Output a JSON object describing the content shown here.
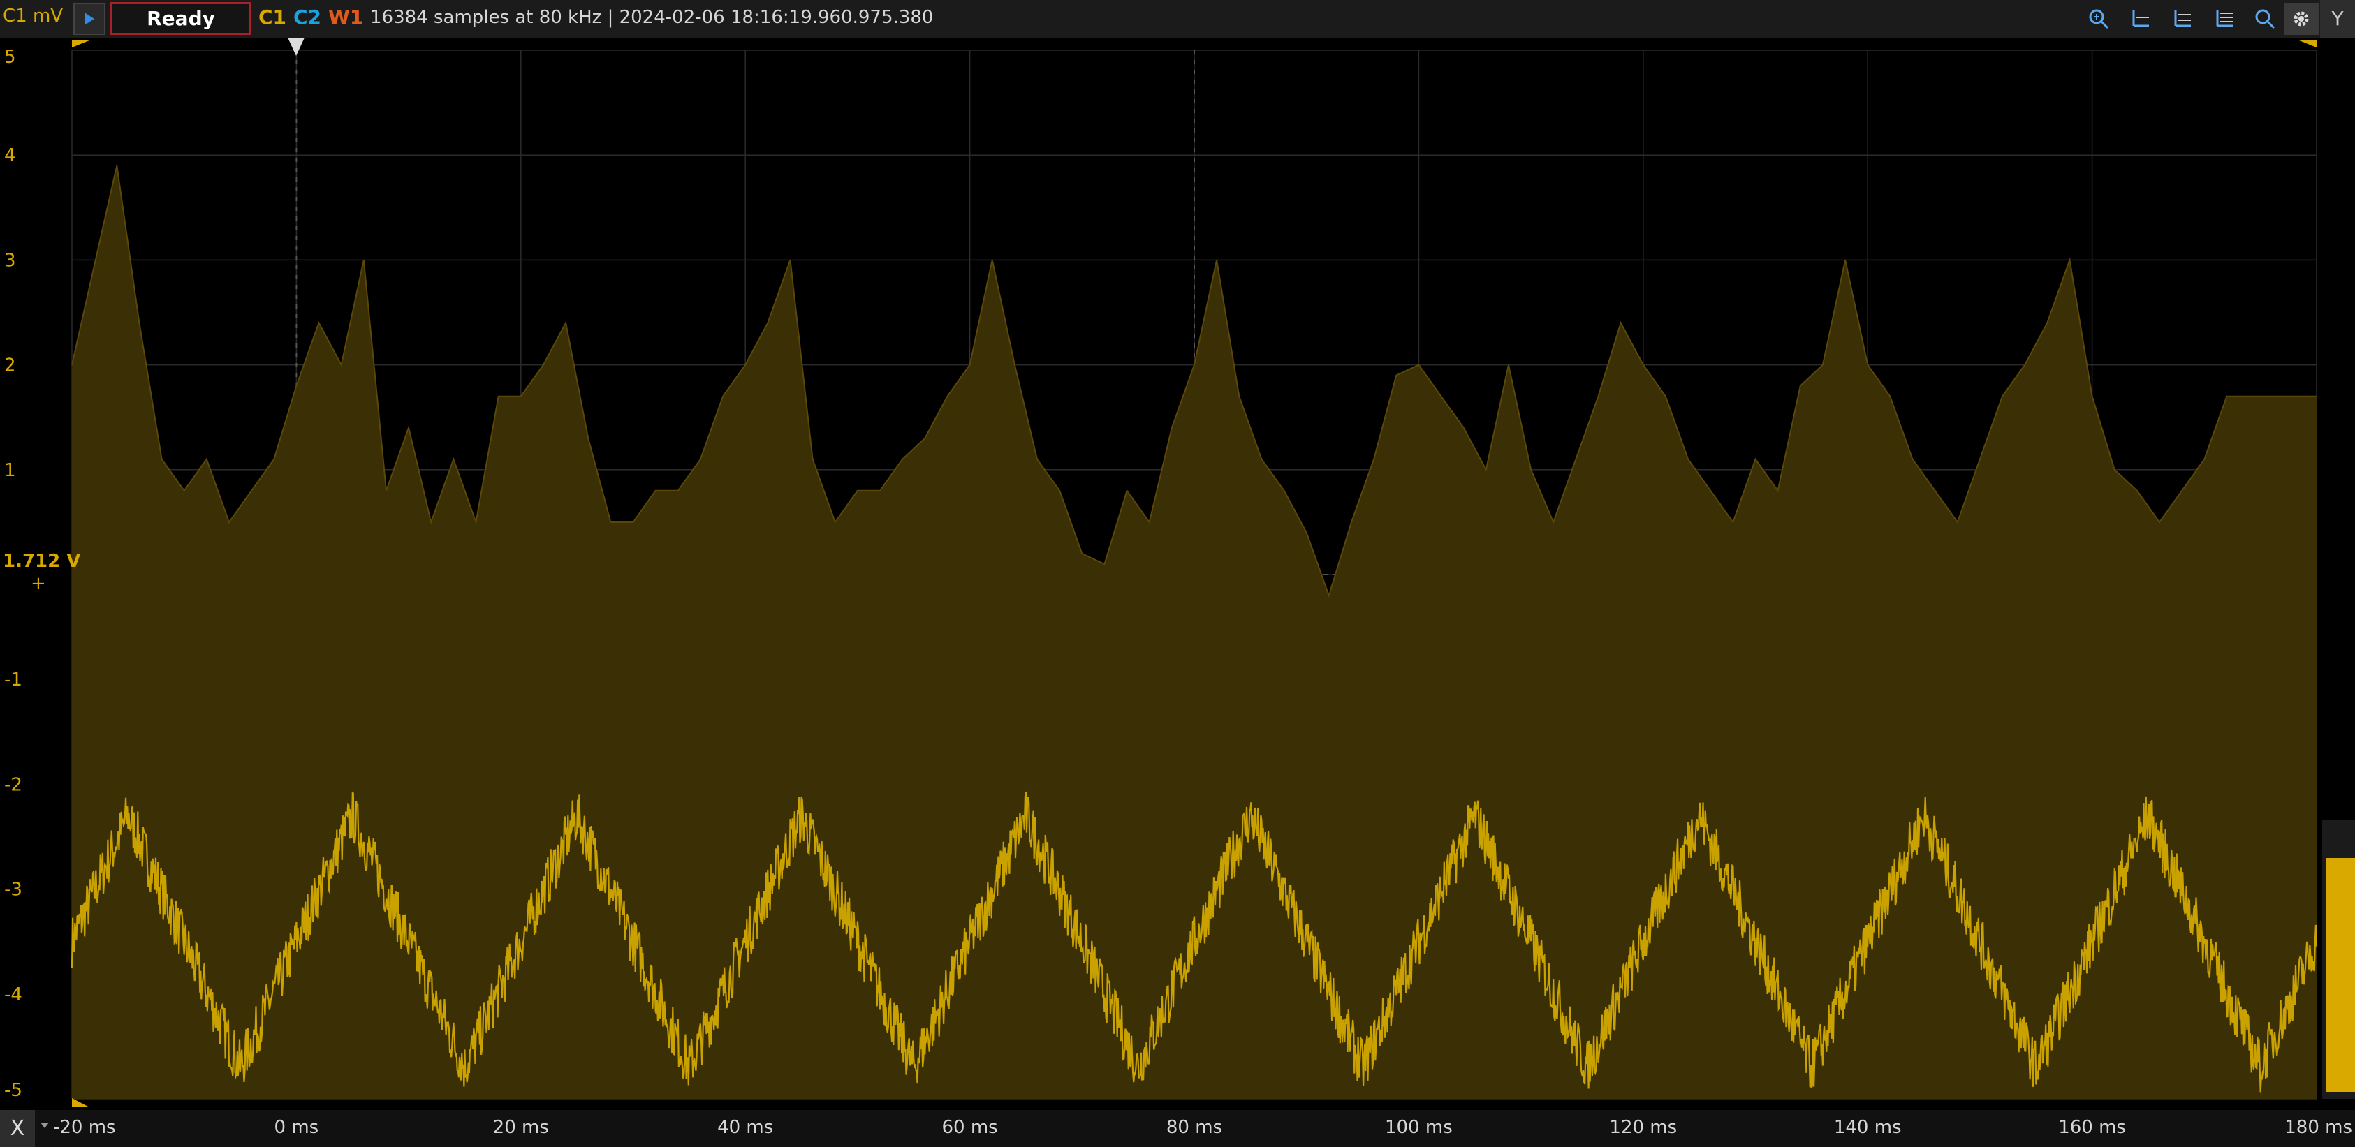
{
  "toolbar": {
    "unit_label": "C1 mV",
    "status_button": "Ready",
    "channels": [
      "C1",
      "C2",
      "W1"
    ],
    "acquisition_info": "16384 samples at 80 kHz | 2024-02-06 18:16:19.960.975.380",
    "icons": [
      "zoom-in-icon",
      "cursor-horizontal-icon",
      "cursor-vertical-icon",
      "cursor-list-icon",
      "zoom-icon",
      "settings-icon"
    ],
    "y_button": "Y",
    "run_icon": "play-icon"
  },
  "bottom": {
    "x_button": "X"
  },
  "colors": {
    "channel1": "#d9a900",
    "channel2": "#19a4e0",
    "math1": "#e05a1a",
    "ready_border": "#a9202a",
    "fill": "#3b2f05"
  },
  "chart_data": {
    "type": "area",
    "offset_label": "1.712 V",
    "yticks": [
      "5",
      "4",
      "3",
      "2",
      "1",
      "-1",
      "-2",
      "-3",
      "-4",
      "-5"
    ],
    "ylim": [
      -5,
      5
    ],
    "xticks": [
      "-20 ms",
      "0 ms",
      "20 ms",
      "40 ms",
      "60 ms",
      "80 ms",
      "100 ms",
      "120 ms",
      "140 ms",
      "160 ms",
      "180 ms"
    ],
    "xlim": [
      -20,
      180
    ],
    "x_unit": "ms",
    "series": [
      {
        "x": [
          -20,
          -16,
          -14,
          -12,
          -10,
          -8,
          -6,
          -4,
          -2,
          0,
          2,
          4,
          6,
          8,
          10,
          12,
          14,
          16,
          18,
          20,
          22,
          24,
          26,
          28,
          30,
          32,
          34,
          36,
          38,
          40,
          42,
          44,
          46,
          48,
          50,
          52,
          54,
          56,
          58,
          60,
          62,
          64,
          66,
          68,
          70,
          72,
          74,
          76,
          78,
          80,
          82,
          84,
          86,
          88,
          90,
          92,
          94,
          96,
          98,
          100,
          102,
          104,
          106,
          108,
          110,
          112,
          114,
          116,
          118,
          120,
          122,
          124,
          126,
          128,
          130,
          132,
          134,
          136,
          138,
          140,
          142,
          144,
          146,
          148,
          150,
          152,
          154,
          156,
          158,
          160,
          162,
          164,
          166,
          168,
          170,
          172,
          174,
          176,
          178,
          180
        ],
        "y": [
          2.0,
          3.9,
          2.4,
          1.1,
          0.8,
          1.1,
          0.5,
          0.8,
          1.1,
          1.8,
          2.4,
          2.0,
          3.0,
          0.8,
          1.4,
          0.5,
          1.1,
          0.5,
          1.7,
          1.7,
          2.0,
          2.4,
          1.3,
          0.5,
          0.5,
          0.8,
          0.8,
          1.1,
          1.7,
          2.0,
          2.4,
          3.0,
          1.1,
          0.5,
          0.8,
          0.8,
          1.1,
          1.3,
          1.7,
          2.0,
          3.0,
          2.0,
          1.1,
          0.8,
          0.2,
          0.1,
          0.8,
          0.5,
          1.4,
          2.0,
          3.0,
          1.7,
          1.1,
          0.8,
          0.4,
          -0.2,
          0.5,
          1.1,
          1.9,
          2.0,
          1.7,
          1.4,
          1.0,
          2.0,
          1.0,
          0.5,
          1.1,
          1.7,
          2.4,
          2.0,
          1.7,
          1.1,
          0.8,
          0.5,
          1.1,
          0.8,
          1.8,
          2.0,
          3.0,
          2.0,
          1.7,
          1.1,
          0.8,
          0.5,
          1.1,
          1.7,
          2.0,
          2.4,
          3.0,
          1.7,
          1.0,
          0.8,
          0.5,
          0.8,
          1.1,
          1.7,
          1.7,
          1.7,
          1.7,
          1.7
        ]
      },
      {
        "period_ms": 20,
        "min": -4.7,
        "max": -2.3,
        "noise": 0.25
      }
    ],
    "trigger_position_ms": 0
  }
}
